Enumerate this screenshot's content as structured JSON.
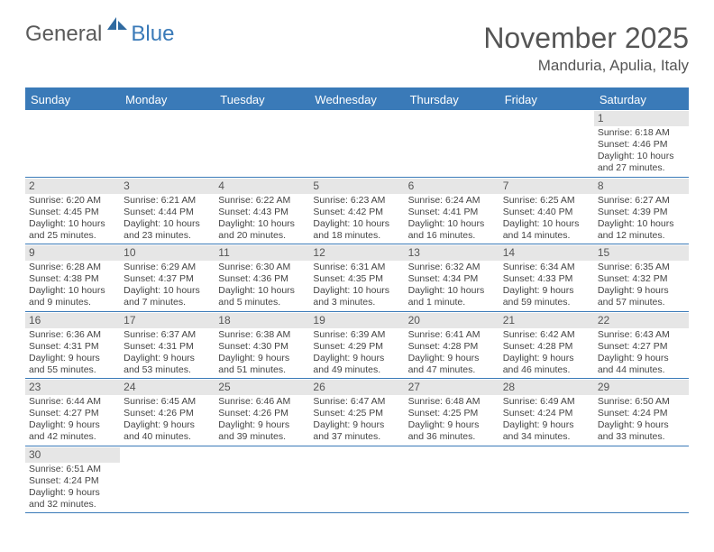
{
  "logo": {
    "word1": "General",
    "word2": "Blue"
  },
  "title": "November 2025",
  "location": "Manduria, Apulia, Italy",
  "weekdays": [
    "Sunday",
    "Monday",
    "Tuesday",
    "Wednesday",
    "Thursday",
    "Friday",
    "Saturday"
  ],
  "colors": {
    "header_bg": "#3a7ab8",
    "text": "#555555",
    "daybar_bg": "#e6e6e6",
    "logo_gray": "#5a5a5a",
    "logo_blue": "#3a7ab8"
  },
  "weeks": [
    [
      null,
      null,
      null,
      null,
      null,
      null,
      {
        "n": "1",
        "sr": "Sunrise: 6:18 AM",
        "ss": "Sunset: 4:46 PM",
        "dl1": "Daylight: 10 hours",
        "dl2": "and 27 minutes."
      }
    ],
    [
      {
        "n": "2",
        "sr": "Sunrise: 6:20 AM",
        "ss": "Sunset: 4:45 PM",
        "dl1": "Daylight: 10 hours",
        "dl2": "and 25 minutes."
      },
      {
        "n": "3",
        "sr": "Sunrise: 6:21 AM",
        "ss": "Sunset: 4:44 PM",
        "dl1": "Daylight: 10 hours",
        "dl2": "and 23 minutes."
      },
      {
        "n": "4",
        "sr": "Sunrise: 6:22 AM",
        "ss": "Sunset: 4:43 PM",
        "dl1": "Daylight: 10 hours",
        "dl2": "and 20 minutes."
      },
      {
        "n": "5",
        "sr": "Sunrise: 6:23 AM",
        "ss": "Sunset: 4:42 PM",
        "dl1": "Daylight: 10 hours",
        "dl2": "and 18 minutes."
      },
      {
        "n": "6",
        "sr": "Sunrise: 6:24 AM",
        "ss": "Sunset: 4:41 PM",
        "dl1": "Daylight: 10 hours",
        "dl2": "and 16 minutes."
      },
      {
        "n": "7",
        "sr": "Sunrise: 6:25 AM",
        "ss": "Sunset: 4:40 PM",
        "dl1": "Daylight: 10 hours",
        "dl2": "and 14 minutes."
      },
      {
        "n": "8",
        "sr": "Sunrise: 6:27 AM",
        "ss": "Sunset: 4:39 PM",
        "dl1": "Daylight: 10 hours",
        "dl2": "and 12 minutes."
      }
    ],
    [
      {
        "n": "9",
        "sr": "Sunrise: 6:28 AM",
        "ss": "Sunset: 4:38 PM",
        "dl1": "Daylight: 10 hours",
        "dl2": "and 9 minutes."
      },
      {
        "n": "10",
        "sr": "Sunrise: 6:29 AM",
        "ss": "Sunset: 4:37 PM",
        "dl1": "Daylight: 10 hours",
        "dl2": "and 7 minutes."
      },
      {
        "n": "11",
        "sr": "Sunrise: 6:30 AM",
        "ss": "Sunset: 4:36 PM",
        "dl1": "Daylight: 10 hours",
        "dl2": "and 5 minutes."
      },
      {
        "n": "12",
        "sr": "Sunrise: 6:31 AM",
        "ss": "Sunset: 4:35 PM",
        "dl1": "Daylight: 10 hours",
        "dl2": "and 3 minutes."
      },
      {
        "n": "13",
        "sr": "Sunrise: 6:32 AM",
        "ss": "Sunset: 4:34 PM",
        "dl1": "Daylight: 10 hours",
        "dl2": "and 1 minute."
      },
      {
        "n": "14",
        "sr": "Sunrise: 6:34 AM",
        "ss": "Sunset: 4:33 PM",
        "dl1": "Daylight: 9 hours",
        "dl2": "and 59 minutes."
      },
      {
        "n": "15",
        "sr": "Sunrise: 6:35 AM",
        "ss": "Sunset: 4:32 PM",
        "dl1": "Daylight: 9 hours",
        "dl2": "and 57 minutes."
      }
    ],
    [
      {
        "n": "16",
        "sr": "Sunrise: 6:36 AM",
        "ss": "Sunset: 4:31 PM",
        "dl1": "Daylight: 9 hours",
        "dl2": "and 55 minutes."
      },
      {
        "n": "17",
        "sr": "Sunrise: 6:37 AM",
        "ss": "Sunset: 4:31 PM",
        "dl1": "Daylight: 9 hours",
        "dl2": "and 53 minutes."
      },
      {
        "n": "18",
        "sr": "Sunrise: 6:38 AM",
        "ss": "Sunset: 4:30 PM",
        "dl1": "Daylight: 9 hours",
        "dl2": "and 51 minutes."
      },
      {
        "n": "19",
        "sr": "Sunrise: 6:39 AM",
        "ss": "Sunset: 4:29 PM",
        "dl1": "Daylight: 9 hours",
        "dl2": "and 49 minutes."
      },
      {
        "n": "20",
        "sr": "Sunrise: 6:41 AM",
        "ss": "Sunset: 4:28 PM",
        "dl1": "Daylight: 9 hours",
        "dl2": "and 47 minutes."
      },
      {
        "n": "21",
        "sr": "Sunrise: 6:42 AM",
        "ss": "Sunset: 4:28 PM",
        "dl1": "Daylight: 9 hours",
        "dl2": "and 46 minutes."
      },
      {
        "n": "22",
        "sr": "Sunrise: 6:43 AM",
        "ss": "Sunset: 4:27 PM",
        "dl1": "Daylight: 9 hours",
        "dl2": "and 44 minutes."
      }
    ],
    [
      {
        "n": "23",
        "sr": "Sunrise: 6:44 AM",
        "ss": "Sunset: 4:27 PM",
        "dl1": "Daylight: 9 hours",
        "dl2": "and 42 minutes."
      },
      {
        "n": "24",
        "sr": "Sunrise: 6:45 AM",
        "ss": "Sunset: 4:26 PM",
        "dl1": "Daylight: 9 hours",
        "dl2": "and 40 minutes."
      },
      {
        "n": "25",
        "sr": "Sunrise: 6:46 AM",
        "ss": "Sunset: 4:26 PM",
        "dl1": "Daylight: 9 hours",
        "dl2": "and 39 minutes."
      },
      {
        "n": "26",
        "sr": "Sunrise: 6:47 AM",
        "ss": "Sunset: 4:25 PM",
        "dl1": "Daylight: 9 hours",
        "dl2": "and 37 minutes."
      },
      {
        "n": "27",
        "sr": "Sunrise: 6:48 AM",
        "ss": "Sunset: 4:25 PM",
        "dl1": "Daylight: 9 hours",
        "dl2": "and 36 minutes."
      },
      {
        "n": "28",
        "sr": "Sunrise: 6:49 AM",
        "ss": "Sunset: 4:24 PM",
        "dl1": "Daylight: 9 hours",
        "dl2": "and 34 minutes."
      },
      {
        "n": "29",
        "sr": "Sunrise: 6:50 AM",
        "ss": "Sunset: 4:24 PM",
        "dl1": "Daylight: 9 hours",
        "dl2": "and 33 minutes."
      }
    ],
    [
      {
        "n": "30",
        "sr": "Sunrise: 6:51 AM",
        "ss": "Sunset: 4:24 PM",
        "dl1": "Daylight: 9 hours",
        "dl2": "and 32 minutes."
      },
      null,
      null,
      null,
      null,
      null,
      null
    ]
  ]
}
